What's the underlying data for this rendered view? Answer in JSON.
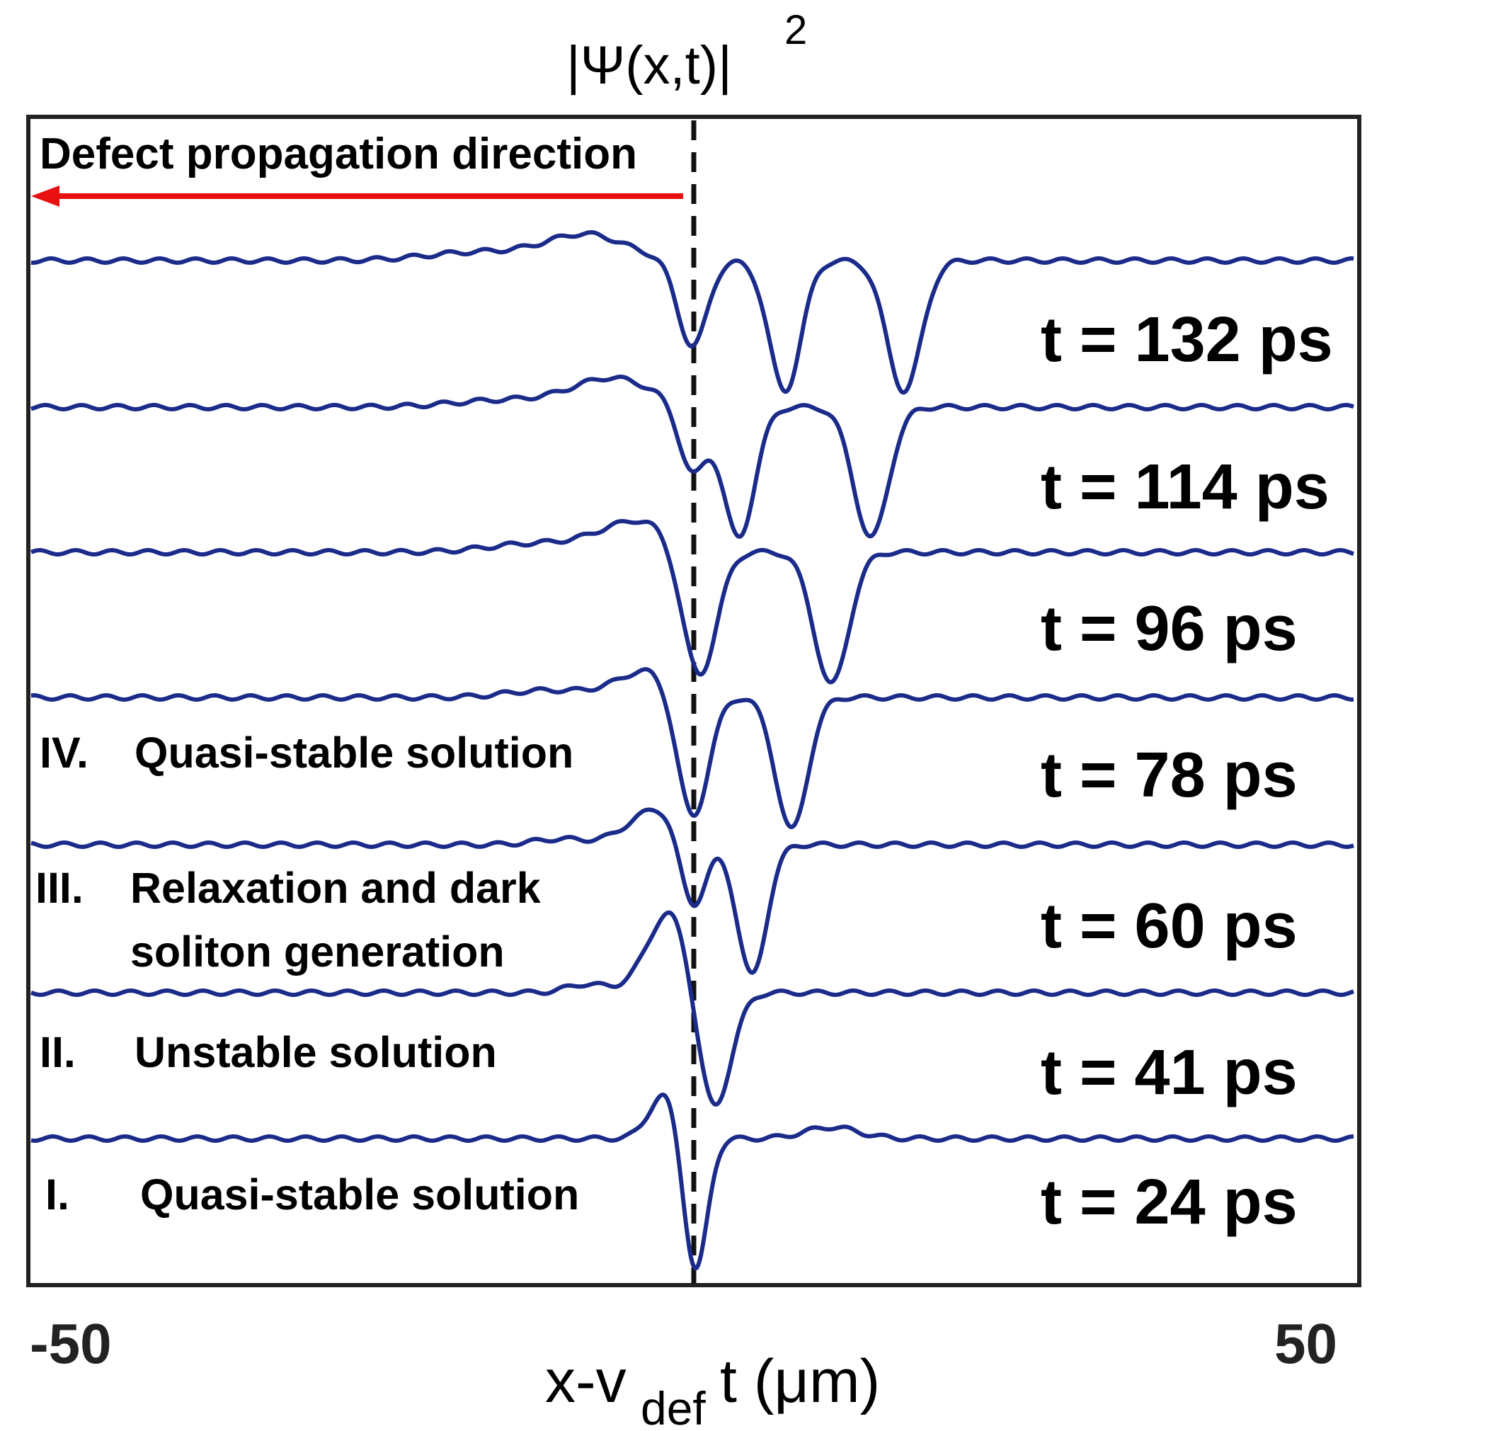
{
  "chart_data": {
    "type": "line",
    "title_parts": {
      "main": "|Ψ(x,t)|",
      "sup": "2"
    },
    "xlabel_parts": {
      "pre": "x-v",
      "sub": "def",
      "post": "t (μm)"
    },
    "xlim": [
      -50,
      50
    ],
    "xticks": [
      "-50",
      "50"
    ],
    "annotation": "Defect propagation direction",
    "line_color": "#1a2b8a",
    "arrow_color": "#e81010",
    "series": [
      {
        "name": "t = 132 ps",
        "baseline": 0,
        "dips": [
          [
            0,
            0.61,
            1.1
          ],
          [
            7.0,
            0.92,
            1.2
          ],
          [
            16.0,
            0.92,
            1.3
          ]
        ],
        "bumps": [
          [
            -8,
            0.18,
            3.0
          ],
          [
            -16,
            0.06,
            4.0
          ]
        ]
      },
      {
        "name": "t = 114 ps",
        "baseline": 0,
        "dips": [
          [
            0,
            0.48,
            1.0
          ],
          [
            3.5,
            0.92,
            1.2
          ],
          [
            13.5,
            0.92,
            1.3
          ]
        ],
        "bumps": [
          [
            -6,
            0.2,
            3.0
          ],
          [
            -14,
            0.05,
            4.0
          ]
        ]
      },
      {
        "name": "t = 96 ps",
        "baseline": 0,
        "dips": [
          [
            0.5,
            0.93,
            1.3
          ],
          [
            10.5,
            0.93,
            1.3
          ]
        ],
        "bumps": [
          [
            -4,
            0.22,
            3.0
          ],
          [
            -12,
            0.06,
            3.5
          ]
        ]
      },
      {
        "name": "t = 78 ps",
        "baseline": 0,
        "dips": [
          [
            0,
            0.93,
            1.2
          ],
          [
            7.5,
            0.93,
            1.2
          ]
        ],
        "bumps": [
          [
            -3,
            0.2,
            2.5
          ],
          [
            -11,
            0.05,
            3.0
          ]
        ]
      },
      {
        "name": "t = 60 ps",
        "baseline": 0,
        "dips": [
          [
            0,
            0.55,
            1.0
          ],
          [
            4.5,
            0.92,
            1.1
          ]
        ],
        "bumps": [
          [
            -2.5,
            0.26,
            2.2
          ],
          [
            -10,
            0.04,
            2.0
          ]
        ]
      },
      {
        "name": "t = 41 ps",
        "baseline": 0,
        "dips": [
          [
            1.5,
            0.93,
            1.3
          ]
        ],
        "bumps": [
          [
            -1.5,
            0.6,
            1.8
          ],
          [
            -8,
            0.06,
            1.5
          ]
        ]
      },
      {
        "name": "t = 24 ps",
        "baseline": 0,
        "dips": [
          [
            0.2,
            0.98,
            0.9
          ]
        ],
        "bumps": [
          [
            -2.0,
            0.33,
            1.2
          ],
          [
            10.5,
            0.08,
            2.0
          ]
        ]
      }
    ],
    "stages": [
      {
        "num": "I.",
        "text": [
          "Quasi-stable solution"
        ]
      },
      {
        "num": "II.",
        "text": [
          "Unstable solution"
        ]
      },
      {
        "num": "III.",
        "text": [
          "Relaxation and dark",
          "soliton generation"
        ]
      },
      {
        "num": "IV.",
        "text": [
          "Quasi-stable solution"
        ]
      }
    ]
  }
}
